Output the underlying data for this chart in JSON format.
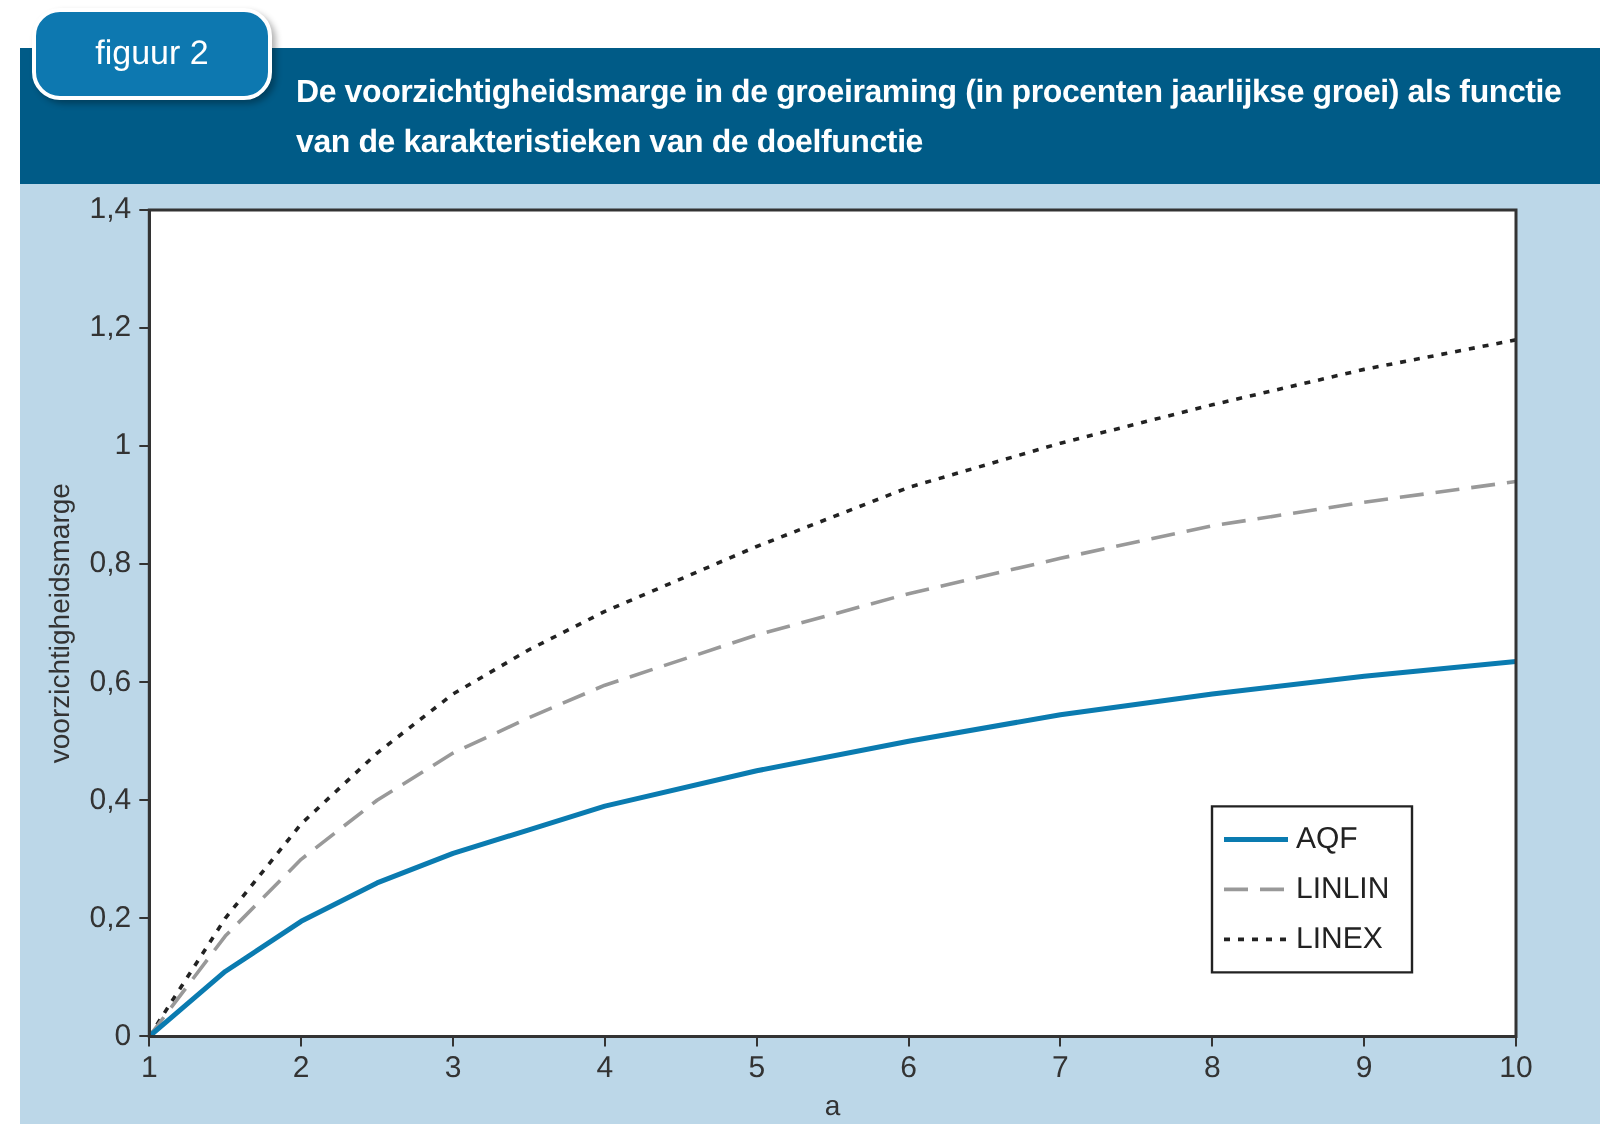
{
  "chart_data": {
    "type": "line",
    "title": "De voorzichtigheidsmarge in de groeiraming (in procenten jaarlijkse groei) als functie van de karakteristieken van de doelfunctie",
    "annotations": [
      "figuur 2"
    ],
    "xlabel": "a",
    "ylabel": "voorzichtigheidsmarge",
    "x": [
      1,
      1.5,
      2,
      2.5,
      3,
      3.5,
      4,
      5,
      6,
      7,
      8,
      9,
      10
    ],
    "series": [
      {
        "name": "AQF",
        "color": "#0a7bb0",
        "line_style": "solid",
        "values": [
          0,
          0.11,
          0.195,
          0.26,
          0.31,
          0.35,
          0.39,
          0.45,
          0.5,
          0.545,
          0.58,
          0.61,
          0.635
        ]
      },
      {
        "name": "LINLIN",
        "color": "#999999",
        "line_style": "dashed",
        "values": [
          0,
          0.17,
          0.3,
          0.4,
          0.48,
          0.54,
          0.595,
          0.68,
          0.75,
          0.81,
          0.865,
          0.905,
          0.94
        ]
      },
      {
        "name": "LINEX",
        "color": "#222222",
        "line_style": "dotted",
        "values": [
          0,
          0.2,
          0.36,
          0.48,
          0.58,
          0.655,
          0.72,
          0.83,
          0.93,
          1.005,
          1.07,
          1.13,
          1.18
        ]
      }
    ],
    "xlim": [
      1,
      10
    ],
    "xticks": [
      1,
      2,
      3,
      4,
      5,
      6,
      7,
      8,
      9,
      10
    ],
    "ylim": [
      0,
      1.4
    ],
    "yticks": [
      0,
      {
        "value": 0.2,
        "label": "0,2"
      },
      {
        "value": 0.4,
        "label": "0,4"
      },
      {
        "value": 0.6,
        "label": "0,6"
      },
      {
        "value": 0.8,
        "label": "0,8"
      },
      1,
      {
        "value": 1.2,
        "label": "1,2"
      },
      {
        "value": 1.4,
        "label": "1,4"
      }
    ],
    "grid": false,
    "legend": "bottom right",
    "marker": "none"
  }
}
